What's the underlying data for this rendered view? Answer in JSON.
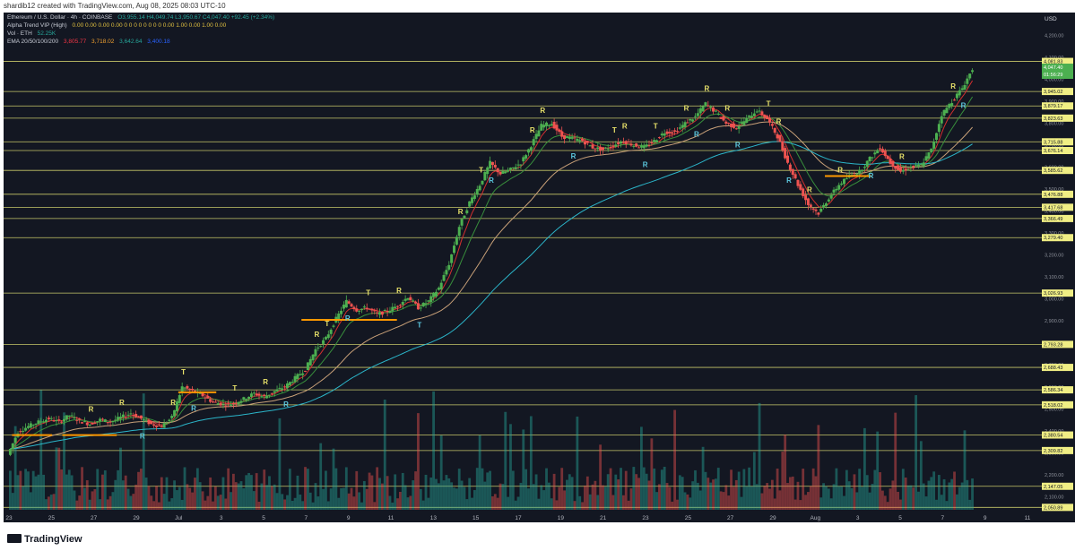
{
  "credit": "shardib12 created with TradingView.com, Aug 08, 2025 08:03 UTC-10",
  "legend": {
    "symbol": "Ethereum / U.S. Dollar · 4h · COINBASE",
    "ohlc": "O3,955.14 H4,049.74 L3,950.67 C4,047.40 +92.45 (+2.34%)",
    "indicator1": "Alpha Trend VIP (High)",
    "indicator1_values": "0.00 0.00 0.00 0.00 0 0 0 0 0 0 0 0 0.00 1.00 0.00 1.00 0.00",
    "volume": "Vol · ETH",
    "volume_value": "52.25K",
    "ema": "EMA 20/50/100/200",
    "ema_values": [
      "3,805.77",
      "3,718.02",
      "3,642.64",
      "3,400.18"
    ],
    "ema_colors": [
      "#f23645",
      "#f0a030",
      "#26a69a",
      "#2962ff"
    ]
  },
  "currency": "USD",
  "brand": "TradingView",
  "colors": {
    "bg": "#131722",
    "up": "#4caf50",
    "down": "#ef5350",
    "level": "#e6e676",
    "support": "#ff9800",
    "ema_fast": "#d32f2f",
    "ema_mid": "#388e3c",
    "ema_slow": "#c8a078",
    "ema_long": "#2bb5c9",
    "ema_200": "#2962ff"
  },
  "chart_data": {
    "type": "candlestick",
    "y_axis_ticks": [
      "4,200.00",
      "4,100.00",
      "4,000.00",
      "3,900.00",
      "3,800.00",
      "3,700.00",
      "3,600.00",
      "3,500.00",
      "3,400.00",
      "3,300.00",
      "3,200.00",
      "3,100.00",
      "3,000.00",
      "2,900.00",
      "2,800.00",
      "2,700.00",
      "2,600.00",
      "2,500.00",
      "2,400.00",
      "2,300.00",
      "2,200.00",
      "2,100.00"
    ],
    "ylim": [
      2040,
      4280
    ],
    "horizontal_levels": [
      "4,081.83",
      "3,945.02",
      "3,879.17",
      "3,823.63",
      "3,715.88",
      "3,676.14",
      "3,585.62",
      "3,476.88",
      "3,417.68",
      "3,366.49",
      "3,279.40",
      "3,026.93",
      "2,793.28",
      "2,688.43",
      "2,586.34",
      "2,518.02",
      "2,380.54",
      "2,309.82",
      "2,147.05",
      "2,050.89"
    ],
    "price_labels": [
      "4,047.40",
      "01:56:29",
      "3,979.26",
      "3,900.00"
    ],
    "x_axis_labels": [
      "23",
      "25",
      "27",
      "29",
      "Jul",
      "3",
      "5",
      "7",
      "9",
      "11",
      "13",
      "15",
      "17",
      "19",
      "21",
      "23",
      "25",
      "27",
      "29",
      "Aug",
      "3",
      "5",
      "7",
      "9",
      "11"
    ],
    "price_path": [
      [
        0,
        2290
      ],
      [
        1,
        2395
      ],
      [
        2,
        2420
      ],
      [
        3,
        2440
      ],
      [
        4,
        2455
      ],
      [
        5,
        2440
      ],
      [
        6,
        2470
      ],
      [
        7,
        2445
      ],
      [
        8,
        2430
      ],
      [
        9,
        2450
      ],
      [
        10,
        2440
      ],
      [
        11,
        2460
      ],
      [
        12,
        2480
      ],
      [
        13,
        2455
      ],
      [
        14,
        2430
      ],
      [
        15,
        2420
      ],
      [
        16,
        2460
      ],
      [
        17,
        2600
      ],
      [
        18,
        2580
      ],
      [
        19,
        2560
      ],
      [
        20,
        2530
      ],
      [
        21,
        2520
      ],
      [
        22,
        2525
      ],
      [
        23,
        2545
      ],
      [
        24,
        2570
      ],
      [
        25,
        2555
      ],
      [
        26,
        2580
      ],
      [
        27,
        2600
      ],
      [
        28,
        2640
      ],
      [
        29,
        2680
      ],
      [
        30,
        2770
      ],
      [
        31,
        2820
      ],
      [
        32,
        2910
      ],
      [
        33,
        2990
      ],
      [
        34,
        2950
      ],
      [
        35,
        2960
      ],
      [
        36,
        2930
      ],
      [
        37,
        2945
      ],
      [
        38,
        2970
      ],
      [
        39,
        3010
      ],
      [
        40,
        2960
      ],
      [
        41,
        2990
      ],
      [
        42,
        3050
      ],
      [
        43,
        3160
      ],
      [
        44,
        3330
      ],
      [
        45,
        3440
      ],
      [
        46,
        3520
      ],
      [
        47,
        3620
      ],
      [
        48,
        3570
      ],
      [
        49,
        3590
      ],
      [
        50,
        3620
      ],
      [
        51,
        3700
      ],
      [
        52,
        3790
      ],
      [
        53,
        3800
      ],
      [
        54,
        3740
      ],
      [
        55,
        3730
      ],
      [
        56,
        3720
      ],
      [
        57,
        3690
      ],
      [
        58,
        3680
      ],
      [
        59,
        3700
      ],
      [
        60,
        3720
      ],
      [
        61,
        3700
      ],
      [
        62,
        3690
      ],
      [
        63,
        3720
      ],
      [
        64,
        3760
      ],
      [
        65,
        3760
      ],
      [
        66,
        3800
      ],
      [
        67,
        3830
      ],
      [
        68,
        3890
      ],
      [
        69,
        3850
      ],
      [
        70,
        3800
      ],
      [
        71,
        3780
      ],
      [
        72,
        3820
      ],
      [
        73,
        3860
      ],
      [
        74,
        3820
      ],
      [
        75,
        3740
      ],
      [
        76,
        3620
      ],
      [
        77,
        3520
      ],
      [
        78,
        3430
      ],
      [
        79,
        3390
      ],
      [
        80,
        3460
      ],
      [
        81,
        3520
      ],
      [
        82,
        3560
      ],
      [
        83,
        3580
      ],
      [
        84,
        3640
      ],
      [
        85,
        3690
      ],
      [
        86,
        3620
      ],
      [
        87,
        3580
      ],
      [
        88,
        3600
      ],
      [
        89,
        3610
      ],
      [
        90,
        3680
      ],
      [
        91,
        3840
      ],
      [
        92,
        3900
      ],
      [
        93,
        3960
      ],
      [
        94,
        4047
      ]
    ],
    "signal_labels": [
      "R",
      "R",
      "R",
      "R",
      "T",
      "R",
      "T",
      "R",
      "R",
      "R",
      "T",
      "R",
      "T",
      "R",
      "T",
      "R",
      "T",
      "R",
      "R",
      "R",
      "R",
      "T",
      "R",
      "R",
      "T",
      "R",
      "R",
      "R",
      "R",
      "R",
      "T",
      "R",
      "R",
      "R",
      "R",
      "R",
      "R",
      "R",
      "R"
    ],
    "volume_series": "ETH"
  }
}
